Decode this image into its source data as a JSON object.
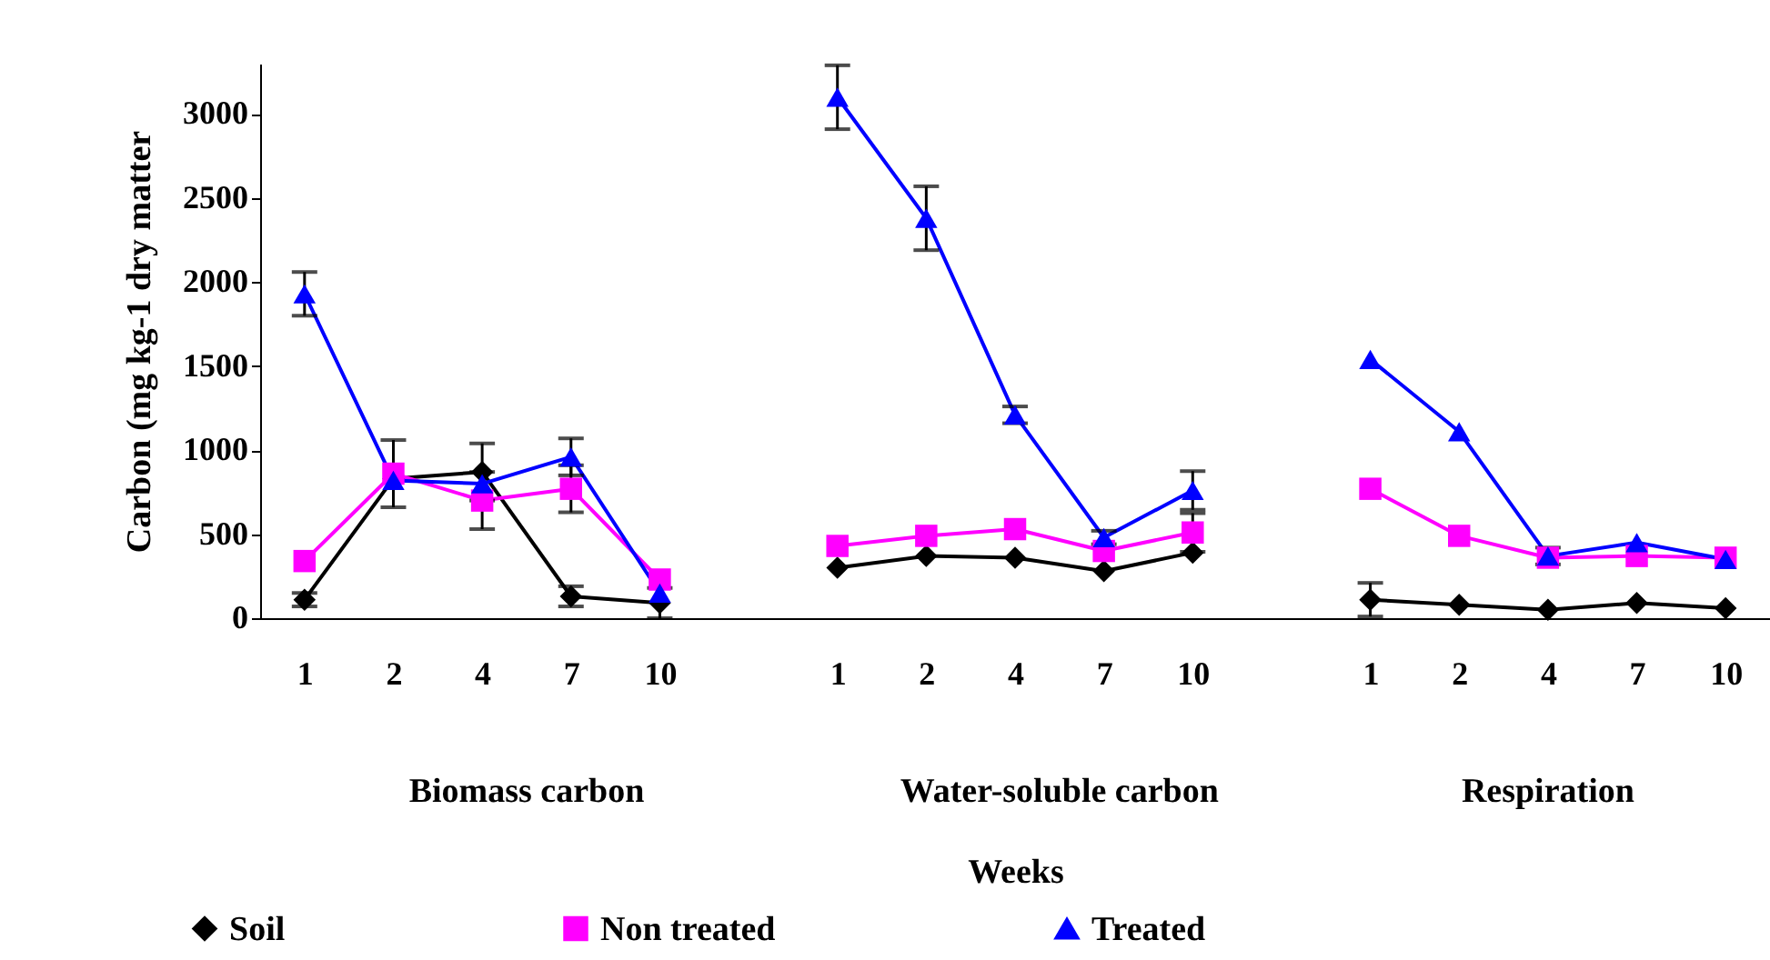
{
  "chart_data": {
    "type": "line",
    "xlabel": "Weeks",
    "ylabel": "Carbon (mg kg-1 dry matter",
    "categories": [
      "1",
      "2",
      "4",
      "7",
      "10",
      null,
      "1",
      "2",
      "4",
      "7",
      "10",
      null,
      "1",
      "2",
      "4",
      "7",
      "10"
    ],
    "annotations": [
      "Biomass carbon",
      "Water-soluble carbon",
      "Respiration"
    ],
    "series": [
      {
        "name": "Soil",
        "color": "#000000",
        "marker": "diamond",
        "values": [
          110,
          830,
          870,
          130,
          90,
          null,
          300,
          370,
          360,
          280,
          390,
          null,
          110,
          80,
          50,
          90,
          60
        ],
        "errors": [
          40,
          null,
          170,
          60,
          90,
          null,
          null,
          null,
          null,
          null,
          null,
          null,
          100,
          null,
          null,
          null,
          null
        ]
      },
      {
        "name": "Non treated",
        "color": "#ff00ff",
        "marker": "square",
        "values": [
          340,
          860,
          700,
          770,
          230,
          null,
          430,
          490,
          530,
          400,
          510,
          null,
          770,
          490,
          360,
          370,
          360
        ],
        "errors": [
          null,
          200,
          170,
          140,
          null,
          null,
          null,
          null,
          null,
          null,
          115,
          null,
          null,
          null,
          null,
          null,
          null
        ]
      },
      {
        "name": "Treated",
        "color": "#0000ff",
        "marker": "triangle",
        "values": [
          1930,
          820,
          800,
          960,
          150,
          null,
          3100,
          2380,
          1210,
          480,
          760,
          null,
          1540,
          1110,
          370,
          450,
          350
        ],
        "errors": [
          130,
          null,
          null,
          110,
          null,
          null,
          190,
          190,
          50,
          40,
          115,
          null,
          null,
          null,
          50,
          null,
          null
        ]
      }
    ],
    "ylim": [
      0,
      3300
    ],
    "yticks": [
      0,
      500,
      1000,
      1500,
      2000,
      2500,
      3000
    ],
    "grid": false,
    "legend": "bottom",
    "line_style": "solid"
  }
}
